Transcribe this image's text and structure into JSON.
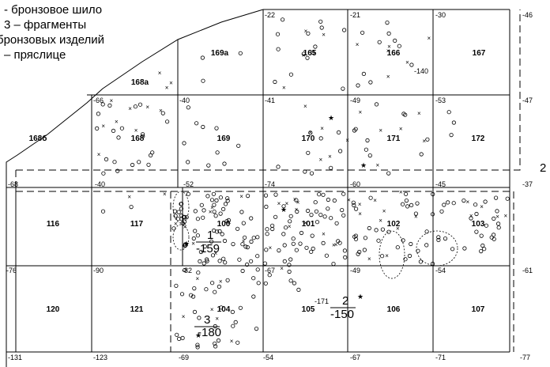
{
  "legend": {
    "lines": [
      "- бронзовое шило",
      "3 – фрагменты",
      "бронзовых изделий",
      "– пряслице"
    ]
  },
  "squares": [
    {
      "id": "169а",
      "label": "169а"
    },
    {
      "id": "165",
      "label": "165"
    },
    {
      "id": "166",
      "label": "166"
    },
    {
      "id": "167",
      "label": "167"
    },
    {
      "id": "168а",
      "label": "168а"
    },
    {
      "id": "168б",
      "label": "168б"
    },
    {
      "id": "168",
      "label": "168"
    },
    {
      "id": "169",
      "label": "169"
    },
    {
      "id": "170",
      "label": "170"
    },
    {
      "id": "171",
      "label": "171"
    },
    {
      "id": "172",
      "label": "172"
    },
    {
      "id": "116",
      "label": "116"
    },
    {
      "id": "117",
      "label": "117"
    },
    {
      "id": "100",
      "label": "100"
    },
    {
      "id": "101",
      "label": "101"
    },
    {
      "id": "102",
      "label": "102"
    },
    {
      "id": "103",
      "label": "103"
    },
    {
      "id": "120",
      "label": "120"
    },
    {
      "id": "121",
      "label": "121"
    },
    {
      "id": "104",
      "label": "104"
    },
    {
      "id": "105",
      "label": "105"
    },
    {
      "id": "106",
      "label": "106"
    },
    {
      "id": "107",
      "label": "107"
    }
  ],
  "depths": [
    "-22",
    "-21",
    "-30",
    "-46",
    "-66",
    "-40",
    "-41",
    "-49",
    "-53",
    "-47",
    "-68",
    "-40",
    "-52",
    "-74",
    "-60",
    "-45",
    "-37",
    "-76",
    "-90",
    "-82",
    "-67",
    "-49",
    "-54",
    "-61",
    "-131",
    "-123",
    "-69",
    "-54",
    "-67",
    "-71",
    "-77",
    "-140",
    "-171"
  ],
  "finds": [
    {
      "num": "1",
      "depth": "-159"
    },
    {
      "num": "2",
      "depth": "-150"
    },
    {
      "num": "3",
      "depth": "-180"
    }
  ],
  "edge_mark": "2"
}
